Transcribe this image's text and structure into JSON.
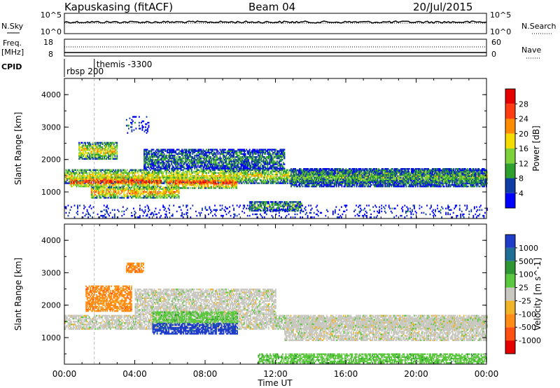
{
  "header": {
    "station": "Kapuskasing (fitACF)",
    "beam": "Beam 04",
    "date": "20/Jul/2015"
  },
  "sky_panel": {
    "left_label": "N.Sky",
    "right_label": "N.Search",
    "left_ticks": [
      "10^5",
      "10^0"
    ],
    "right_ticks": [
      "10^5",
      "10^0"
    ]
  },
  "freq_panel": {
    "left_label_1": "Freq.",
    "left_label_2": "[MHz]",
    "right_label": "Nave",
    "left_ticks": [
      "18",
      "8"
    ],
    "right_ticks": [
      "60",
      "0"
    ]
  },
  "cpid": {
    "label": "CPID",
    "entries": [
      {
        "time_h": 0.0,
        "text": "rbsp 200"
      },
      {
        "time_h": 1.7,
        "text": "themis -3300"
      }
    ]
  },
  "x_axis": {
    "label": "Time UT",
    "ticks": [
      "00:00",
      "04:00",
      "08:00",
      "12:00",
      "16:00",
      "20:00",
      "00:00"
    ],
    "range_h": [
      0,
      24
    ]
  },
  "chart_data": [
    {
      "type": "heatmap",
      "title": "",
      "xlabel": "Time UT",
      "ylabel": "Slant Range [km]",
      "ylim": [
        180,
        4500
      ],
      "y_ticks": [
        "1000",
        "2000",
        "3000",
        "4000"
      ],
      "colorbar": {
        "label": "Power [dB]",
        "ticks": [
          "4",
          "8",
          "12",
          "16",
          "20",
          "24",
          "28"
        ],
        "colors": [
          "#0000ff",
          "#0f3ca5",
          "#2ea02e",
          "#7dd23c",
          "#f5dc00",
          "#ff8c00",
          "#ff3c14",
          "#e60000"
        ]
      },
      "regions": [
        {
          "t": [
            0.0,
            24.0
          ],
          "r": [
            1250,
            1700
          ],
          "level": 0.55
        },
        {
          "t": [
            0.3,
            5.5
          ],
          "r": [
            1150,
            1450
          ],
          "level": 0.9
        },
        {
          "t": [
            5.8,
            9.8
          ],
          "r": [
            1100,
            1450
          ],
          "level": 0.85
        },
        {
          "t": [
            12.8,
            24.0
          ],
          "r": [
            1150,
            1700
          ],
          "level": 0.35
        },
        {
          "t": [
            1.5,
            6.5
          ],
          "r": [
            800,
            1150
          ],
          "level": 0.7
        },
        {
          "t": [
            4.5,
            12.5
          ],
          "r": [
            1700,
            2300
          ],
          "level": 0.3
        },
        {
          "t": [
            10.5,
            13.5
          ],
          "r": [
            400,
            700
          ],
          "level": 0.4
        },
        {
          "t": [
            0.8,
            3.0
          ],
          "r": [
            2000,
            2500
          ],
          "level": 0.6
        },
        {
          "t": [
            3.5,
            4.8
          ],
          "r": [
            2800,
            3300
          ],
          "level": 0.15
        },
        {
          "t": [
            0.0,
            24.0
          ],
          "r": [
            200,
            600
          ],
          "level": 0.1
        }
      ]
    },
    {
      "type": "heatmap",
      "title": "",
      "xlabel": "Time UT",
      "ylabel": "Slant Range [km]",
      "ylim": [
        180,
        4500
      ],
      "y_ticks": [
        "1000",
        "2000",
        "3000",
        "4000"
      ],
      "colorbar": {
        "label": "Velocity [m s^-1]",
        "ticks": [
          "1000",
          "500",
          "100",
          "25",
          "-25",
          "-100",
          "-500",
          "-1000"
        ],
        "colors": [
          "#1e3cc8",
          "#1e6e96",
          "#2e9632",
          "#5ac83c",
          "#c8c8c0",
          "#f0b428",
          "#ff8c14",
          "#ff5014",
          "#e60000"
        ]
      },
      "regions": [
        {
          "t": [
            0.0,
            24.0
          ],
          "r": [
            1250,
            1700
          ],
          "class": "gray"
        },
        {
          "t": [
            12.5,
            24.0
          ],
          "r": [
            900,
            1600
          ],
          "class": "gray"
        },
        {
          "t": [
            4.0,
            12.0
          ],
          "r": [
            1700,
            2500
          ],
          "class": "gray"
        },
        {
          "t": [
            1.2,
            3.8
          ],
          "r": [
            1800,
            2600
          ],
          "class": "orange"
        },
        {
          "t": [
            3.5,
            4.5
          ],
          "r": [
            3000,
            3300
          ],
          "class": "orange"
        },
        {
          "t": [
            5.0,
            9.8
          ],
          "r": [
            1100,
            1450
          ],
          "class": "blue"
        },
        {
          "t": [
            5.0,
            9.8
          ],
          "r": [
            1450,
            1800
          ],
          "class": "green"
        },
        {
          "t": [
            11.0,
            24.0
          ],
          "r": [
            200,
            500
          ],
          "class": "green"
        }
      ]
    }
  ]
}
